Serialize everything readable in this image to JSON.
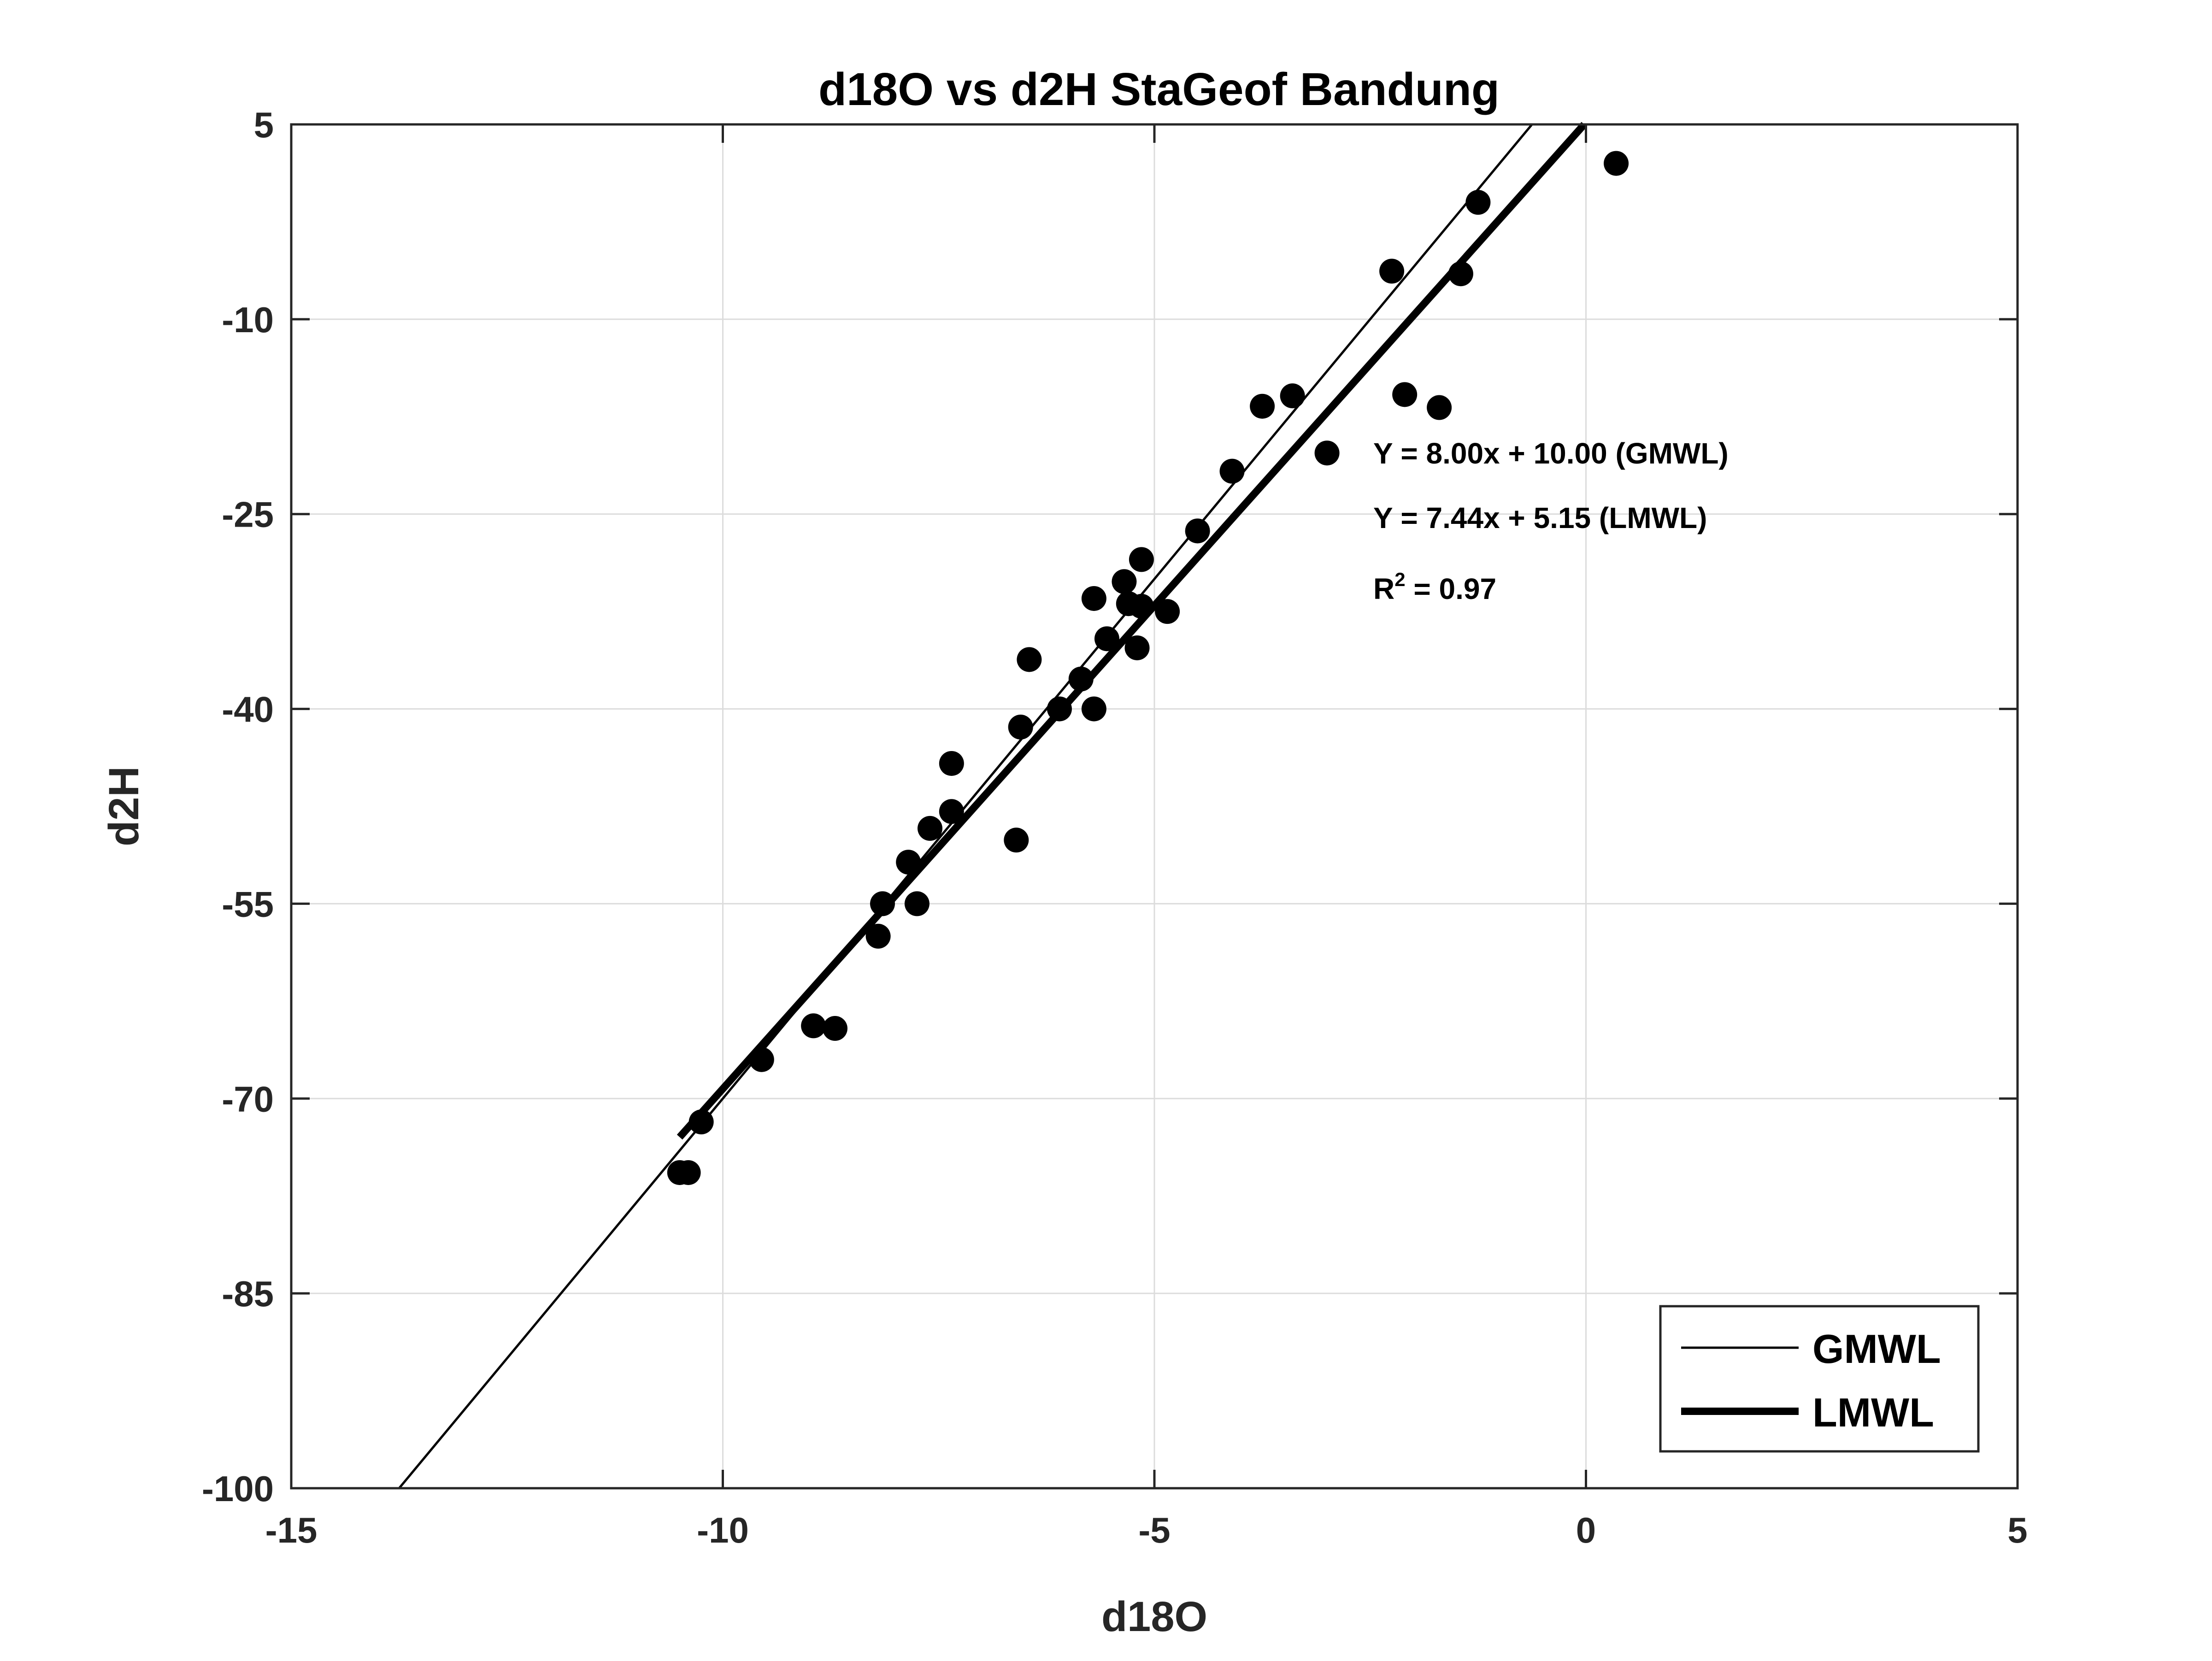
{
  "chart_data": {
    "type": "scatter",
    "title": "d18O vs d2H StaGeof Bandung",
    "xlabel": "d18O",
    "ylabel": "d2H",
    "xlim": [
      -15,
      5
    ],
    "ylim": [
      -100,
      5
    ],
    "xticks": [
      -15,
      -10,
      -5,
      0,
      5
    ],
    "yticks": [
      5,
      -10,
      -25,
      -40,
      -55,
      -70,
      -85,
      -100
    ],
    "xtick_labels": [
      "-15",
      "-10",
      "-5",
      "0",
      "5"
    ],
    "ytick_labels": [
      "5",
      "-10",
      "-25",
      "-40",
      "-55",
      "-70",
      "-85",
      "-100"
    ],
    "grid": true,
    "points": [
      {
        "x": 0.35,
        "y": 2.0
      },
      {
        "x": -1.25,
        "y": -1.0
      },
      {
        "x": -1.45,
        "y": -6.5
      },
      {
        "x": -2.25,
        "y": -6.3
      },
      {
        "x": -2.1,
        "y": -15.8
      },
      {
        "x": -1.7,
        "y": -16.8
      },
      {
        "x": -3.0,
        "y": -20.3
      },
      {
        "x": -3.4,
        "y": -15.9
      },
      {
        "x": -3.75,
        "y": -16.7
      },
      {
        "x": -4.1,
        "y": -21.7
      },
      {
        "x": -4.5,
        "y": -26.3
      },
      {
        "x": -5.15,
        "y": -28.5
      },
      {
        "x": -5.35,
        "y": -30.2
      },
      {
        "x": -5.3,
        "y": -31.9
      },
      {
        "x": -5.15,
        "y": -32.1
      },
      {
        "x": -4.85,
        "y": -32.5
      },
      {
        "x": -5.2,
        "y": -35.3
      },
      {
        "x": -5.7,
        "y": -31.5
      },
      {
        "x": -5.55,
        "y": -34.6
      },
      {
        "x": -5.85,
        "y": -37.7
      },
      {
        "x": -5.7,
        "y": -40.0
      },
      {
        "x": -6.1,
        "y": -40.0
      },
      {
        "x": -6.45,
        "y": -36.2
      },
      {
        "x": -6.55,
        "y": -41.4
      },
      {
        "x": -6.6,
        "y": -50.1
      },
      {
        "x": -7.35,
        "y": -44.2
      },
      {
        "x": -7.35,
        "y": -47.9
      },
      {
        "x": -7.6,
        "y": -49.2
      },
      {
        "x": -7.85,
        "y": -51.8
      },
      {
        "x": -7.75,
        "y": -55.0
      },
      {
        "x": -8.15,
        "y": -55.0
      },
      {
        "x": -8.2,
        "y": -57.5
      },
      {
        "x": -8.95,
        "y": -64.4
      },
      {
        "x": -8.7,
        "y": -64.6
      },
      {
        "x": -9.55,
        "y": -67.0
      },
      {
        "x": -10.25,
        "y": -71.8
      },
      {
        "x": -10.4,
        "y": -75.7
      },
      {
        "x": -10.5,
        "y": -75.7
      }
    ],
    "lines": [
      {
        "name": "GMWL",
        "slope": 8.0,
        "intercept": 10.0,
        "x_range": [
          -13.75,
          -0.63
        ],
        "stroke": "thin"
      },
      {
        "name": "LMWL",
        "slope": 7.44,
        "intercept": 5.15,
        "x_range": [
          -10.5,
          -0.02
        ],
        "stroke": "thick"
      }
    ],
    "annotations": [
      {
        "text": "Y = 8.00x + 10.00 (GMWL)"
      },
      {
        "text": "Y = 7.44x + 5.15 (LMWL)"
      },
      {
        "text": "R",
        "sup": "2",
        "suffix": " = 0.97"
      }
    ],
    "legend": {
      "position": "bottom-right",
      "entries": [
        "GMWL",
        "LMWL"
      ]
    },
    "colors": {
      "axes": "#262626",
      "grid": "#dcdcdc",
      "marker": "#000000",
      "line": "#000000"
    }
  }
}
